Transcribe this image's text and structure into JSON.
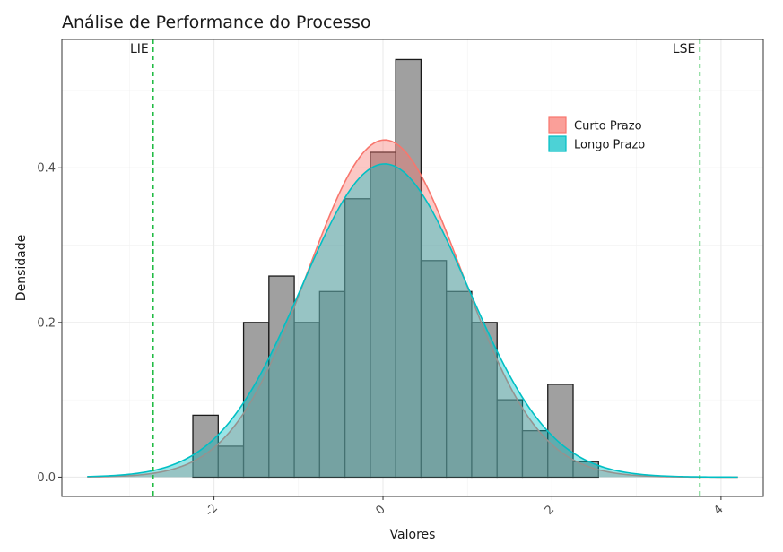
{
  "chart_data": {
    "type": "bar",
    "title": "Análise de Performance do Processo",
    "xlabel": "Valores",
    "ylabel": "Densidade",
    "xlim": [
      -3.8,
      4.5
    ],
    "ylim": [
      -0.025,
      0.566
    ],
    "x_ticks": [
      -2,
      0,
      2,
      4
    ],
    "x_tick_labels": [
      "-2",
      "0",
      "2",
      "4"
    ],
    "y_ticks": [
      0.0,
      0.2,
      0.4
    ],
    "y_tick_labels": [
      "0.0",
      "0.2",
      "0.4"
    ],
    "grid": true,
    "histogram": {
      "bin_width": 0.3,
      "bin_starts": [
        -2.25,
        -1.95,
        -1.65,
        -1.35,
        -1.05,
        -0.75,
        -0.45,
        -0.15,
        0.15,
        0.45,
        0.75,
        1.05,
        1.35,
        1.65,
        1.95,
        2.25
      ],
      "density": [
        0.08,
        0.04,
        0.2,
        0.26,
        0.2,
        0.24,
        0.36,
        0.42,
        0.54,
        0.28,
        0.24,
        0.2,
        0.1,
        0.06,
        0.12,
        0.02
      ],
      "fill": "#a0a0a0",
      "stroke": "#1a1a1a"
    },
    "series": [
      {
        "name": "Curto Prazo",
        "kind": "normal-density",
        "mean": 0.02,
        "sd": 0.915,
        "fill": "#F8766D",
        "stroke": "#F8766D"
      },
      {
        "name": "Longo Prazo",
        "kind": "normal-density",
        "mean": 0.02,
        "sd": 0.985,
        "fill": "#00BFC4",
        "stroke": "#00BFC4"
      }
    ],
    "curve_range": [
      -3.5,
      4.2
    ],
    "spec_limits": [
      {
        "label": "LIE",
        "x": -2.72
      },
      {
        "label": "LSE",
        "x": 3.75
      }
    ],
    "spec_color": "#22bb44",
    "legend_position": "top-right"
  }
}
